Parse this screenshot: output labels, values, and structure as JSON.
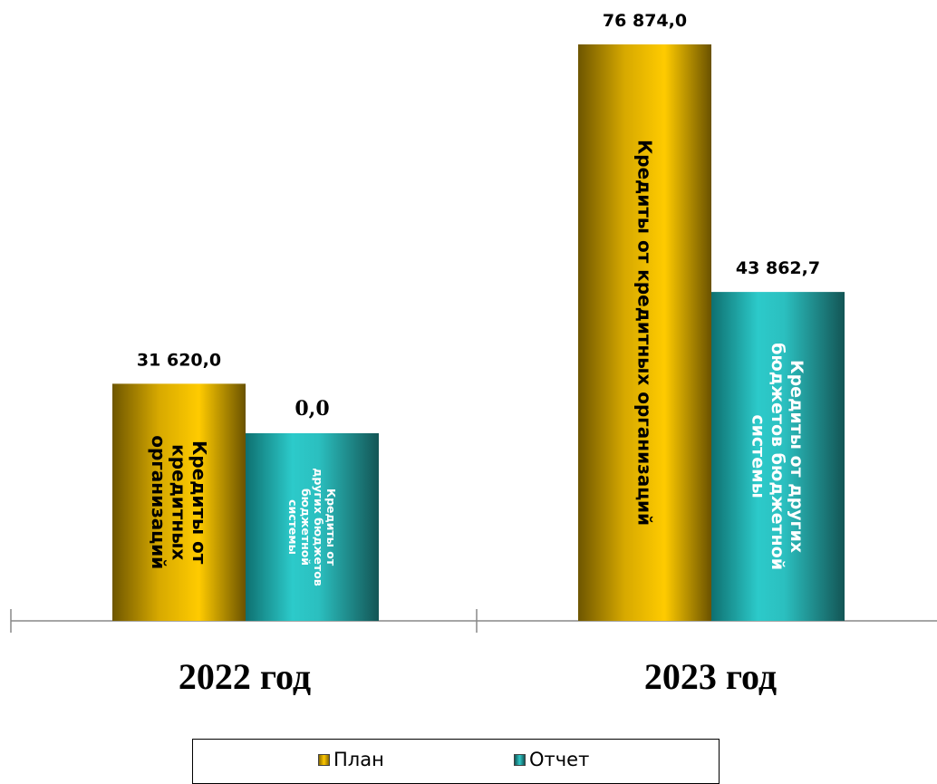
{
  "chart_data": {
    "type": "bar",
    "categories": [
      "2022 год",
      "2023 год"
    ],
    "series": [
      {
        "name": "План",
        "color": "#FFC800",
        "values": [
          31620.0,
          76874.0
        ],
        "value_labels": [
          "31 620,0",
          "76 874,0"
        ],
        "bar_labels": [
          "Кредиты от кредитных организаций",
          "Кредиты от кредитных организаций"
        ]
      },
      {
        "name": "Отчет",
        "color": "#2EC8C8",
        "values": [
          0.0,
          43862.7
        ],
        "value_labels": [
          "0,0",
          "43 862,7"
        ],
        "bar_labels": [
          "Кредиты от других бюджетов бюджетной системы",
          "Кредиты от других бюджетов бюджетной системы"
        ]
      }
    ],
    "legend_position": "bottom",
    "grid": false
  }
}
